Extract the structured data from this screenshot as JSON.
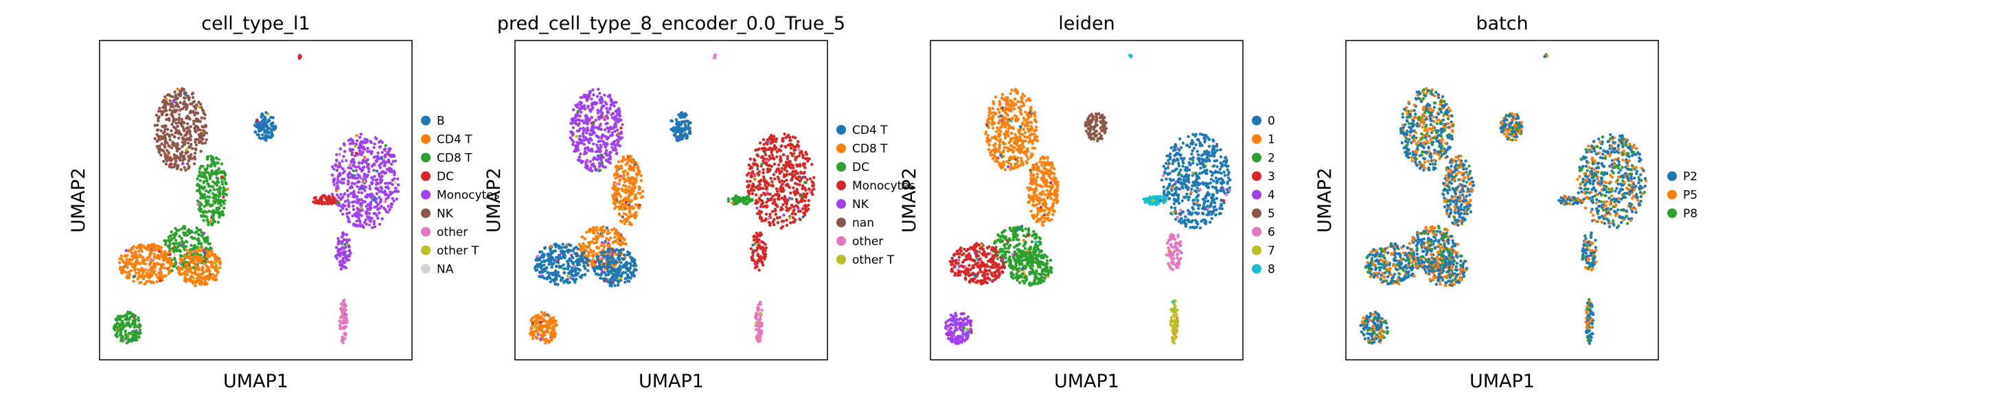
{
  "figure": {
    "xlabel": "UMAP1",
    "ylabel": "UMAP2"
  },
  "colors": {
    "tab_blue": "#1f77b4",
    "tab_orange": "#ff7f0e",
    "tab_green": "#2ca02c",
    "tab_red": "#d62728",
    "tab_purple": "#9467bd",
    "tab_brown": "#8c564b",
    "tab_pink": "#e377c2",
    "tab_olive": "#bcbd22",
    "tab_cyan": "#17becf",
    "na_gray": "#d3d3d3",
    "magenta_purple": "#a040f0"
  },
  "chart_data": [
    {
      "type": "scatter",
      "title": "cell_type_l1",
      "xlabel": "UMAP1",
      "ylabel": "UMAP2",
      "legend_position": "right",
      "legend": [
        {
          "label": "B",
          "color": "#1f77b4"
        },
        {
          "label": "CD4 T",
          "color": "#ff7f0e"
        },
        {
          "label": "CD8 T",
          "color": "#2ca02c"
        },
        {
          "label": "DC",
          "color": "#d62728"
        },
        {
          "label": "Monocytes",
          "color": "#a040f0"
        },
        {
          "label": "NK",
          "color": "#8c564b"
        },
        {
          "label": "other",
          "color": "#e377c2"
        },
        {
          "label": "other T",
          "color": "#bcbd22"
        },
        {
          "label": "NA",
          "color": "#d3d3d3"
        }
      ]
    },
    {
      "type": "scatter",
      "title": "pred_cell_type_8_encoder_0.0_True_5",
      "xlabel": "UMAP1",
      "ylabel": "UMAP2",
      "legend_position": "right",
      "legend": [
        {
          "label": "CD4 T",
          "color": "#1f77b4"
        },
        {
          "label": "CD8 T",
          "color": "#ff7f0e"
        },
        {
          "label": "DC",
          "color": "#2ca02c"
        },
        {
          "label": "Monocytes",
          "color": "#d62728"
        },
        {
          "label": "NK",
          "color": "#a040f0"
        },
        {
          "label": "nan",
          "color": "#8c564b"
        },
        {
          "label": "other",
          "color": "#e377c2"
        },
        {
          "label": "other T",
          "color": "#bcbd22"
        }
      ]
    },
    {
      "type": "scatter",
      "title": "leiden",
      "xlabel": "UMAP1",
      "ylabel": "UMAP2",
      "legend_position": "right",
      "legend": [
        {
          "label": "0",
          "color": "#1f77b4"
        },
        {
          "label": "1",
          "color": "#ff7f0e"
        },
        {
          "label": "2",
          "color": "#2ca02c"
        },
        {
          "label": "3",
          "color": "#d62728"
        },
        {
          "label": "4",
          "color": "#a040f0"
        },
        {
          "label": "5",
          "color": "#8c564b"
        },
        {
          "label": "6",
          "color": "#e377c2"
        },
        {
          "label": "7",
          "color": "#bcbd22"
        },
        {
          "label": "8",
          "color": "#17becf"
        }
      ]
    },
    {
      "type": "scatter",
      "title": "batch",
      "xlabel": "UMAP1",
      "ylabel": "UMAP2",
      "legend_position": "right",
      "legend": [
        {
          "label": "P2",
          "color": "#1f77b4"
        },
        {
          "label": "P5",
          "color": "#ff7f0e"
        },
        {
          "label": "P8",
          "color": "#2ca02c"
        }
      ]
    }
  ]
}
